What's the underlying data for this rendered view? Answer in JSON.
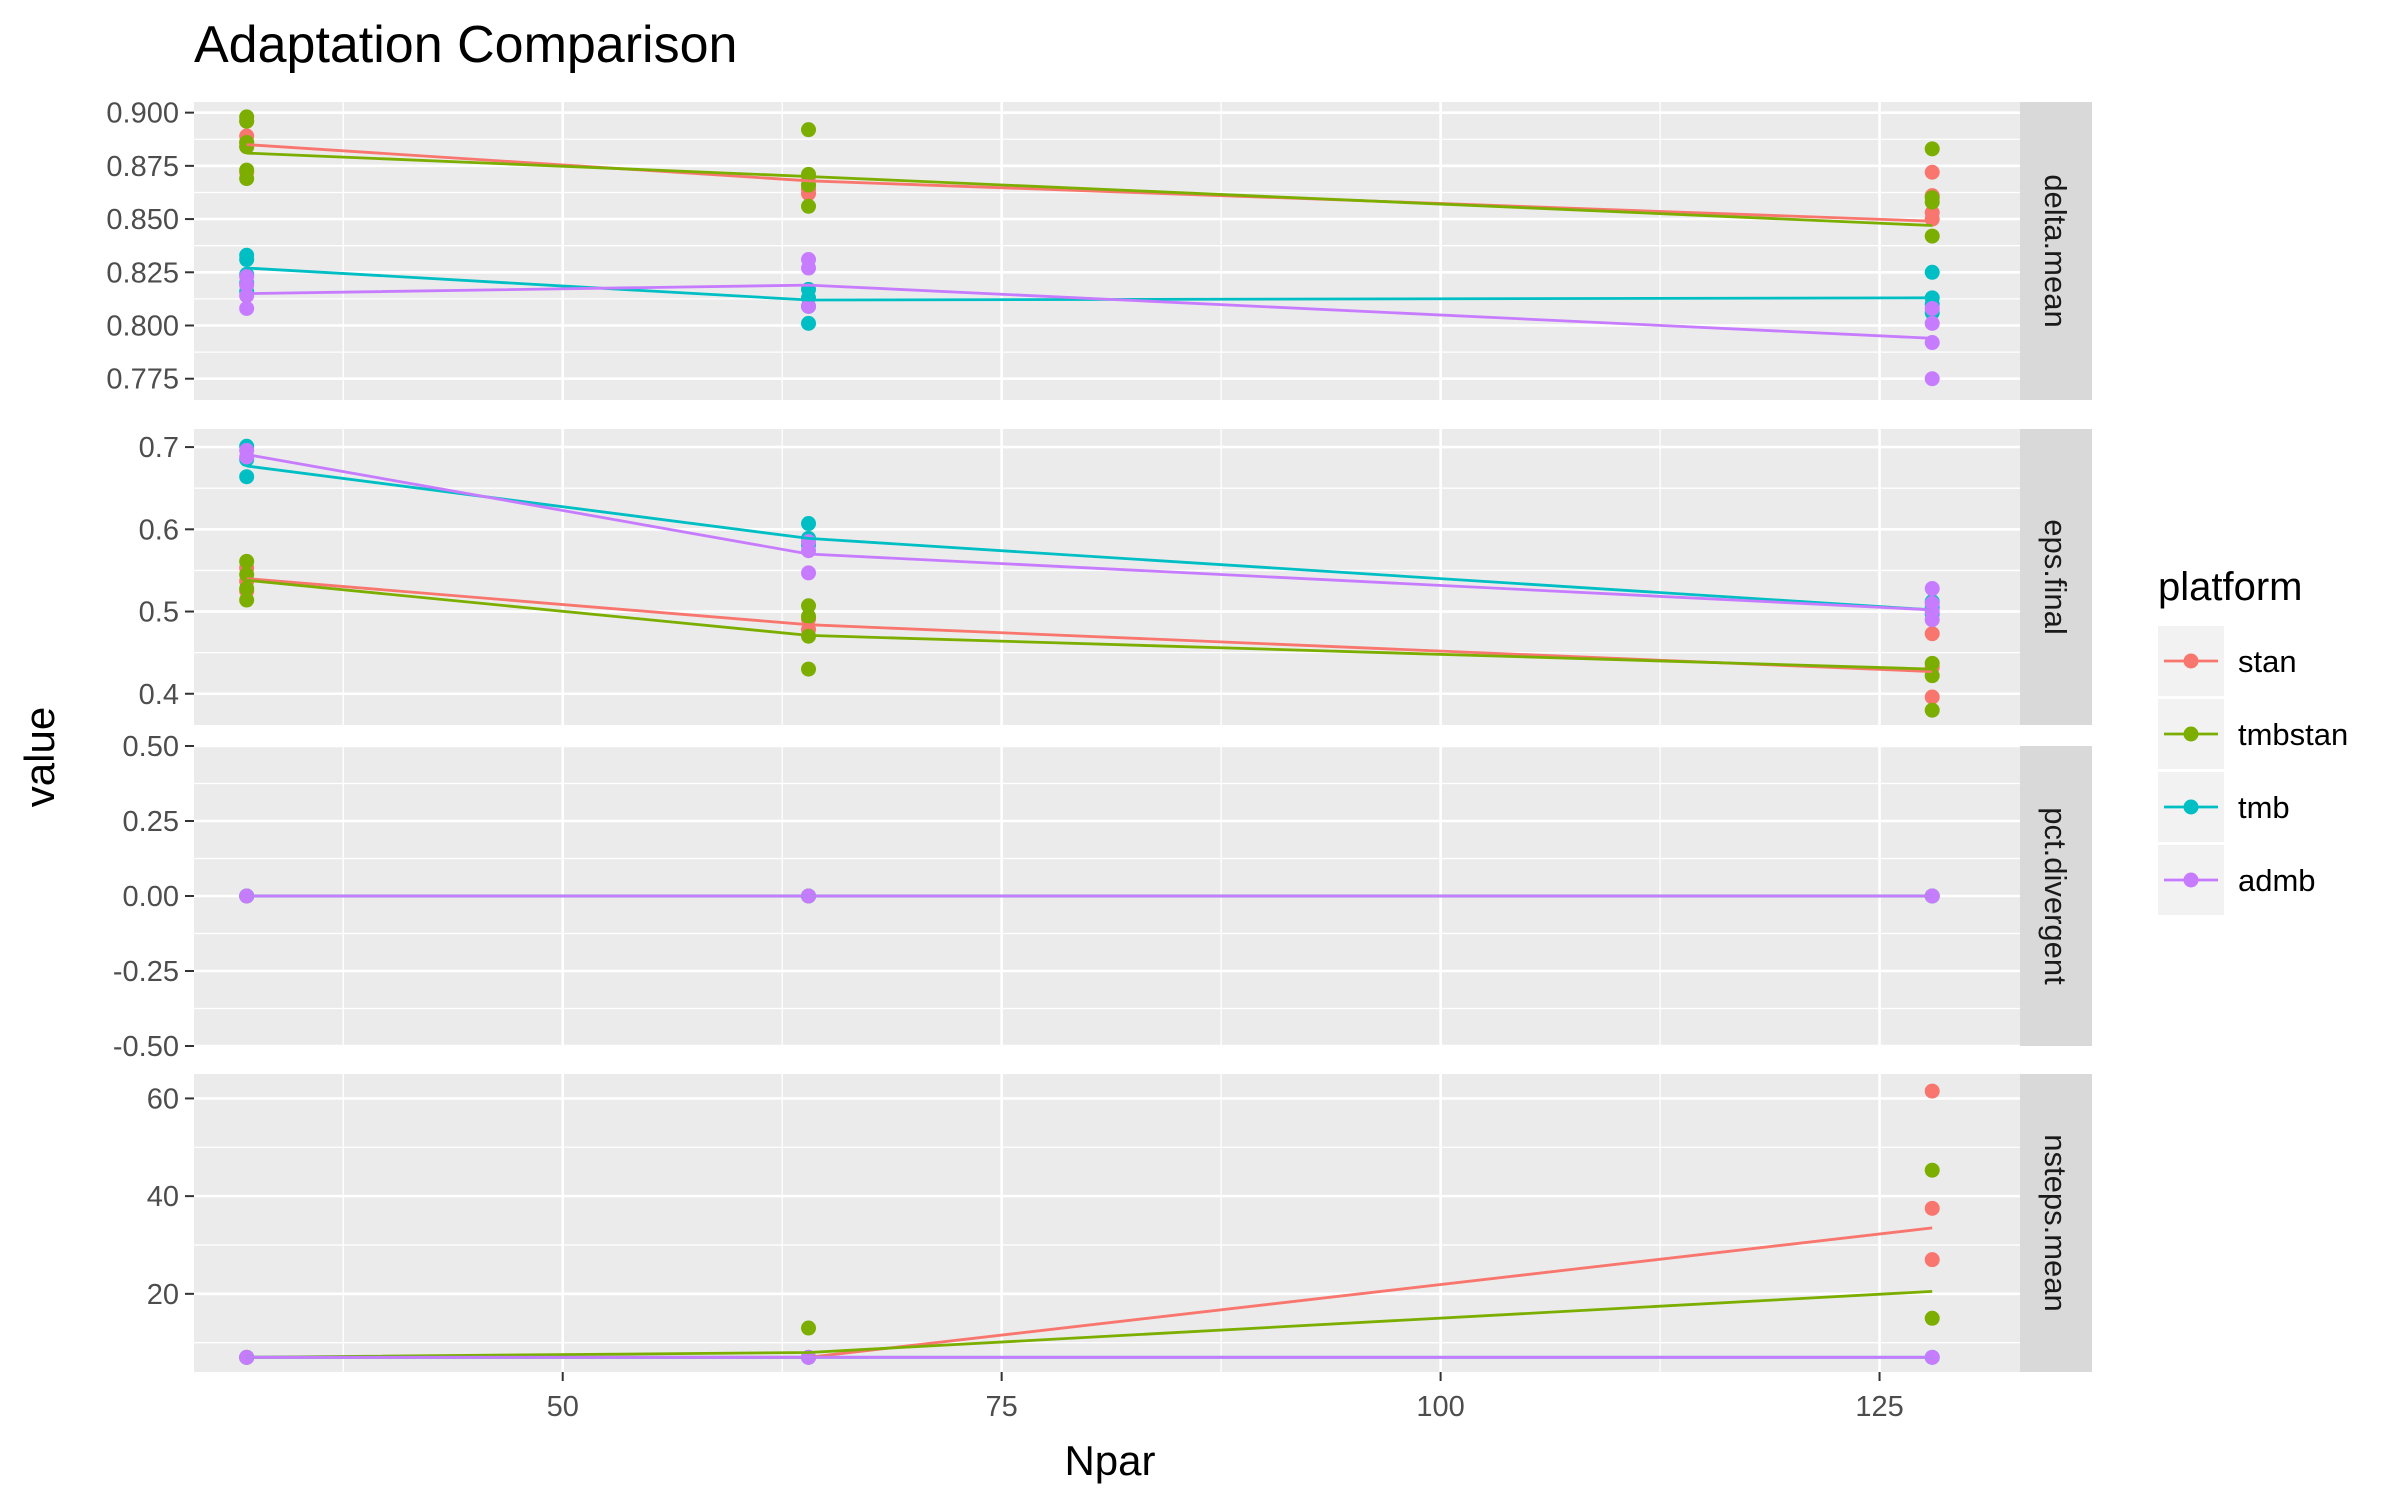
{
  "chart_data": {
    "type": "line",
    "title": "Adaptation Comparison",
    "xlabel": "Npar",
    "ylabel": "value",
    "xlim": [
      29,
      133
    ],
    "x_ticks": [
      50,
      75,
      100,
      125
    ],
    "x_tick_labels": [
      "50",
      "75",
      "100",
      "125"
    ],
    "grid": true,
    "legend": {
      "title": "platform",
      "position": "right",
      "entries": [
        "stan",
        "tmbstan",
        "tmb",
        "admb"
      ]
    },
    "colors": {
      "stan": "#F8766D",
      "tmbstan": "#7CAE00",
      "tmb": "#00BFC4",
      "admb": "#C77CFF"
    },
    "facets": [
      {
        "name": "delta.mean",
        "ylim": [
          0.765,
          0.905
        ],
        "y_ticks": [
          0.775,
          0.8,
          0.825,
          0.85,
          0.875,
          0.9
        ],
        "y_tick_labels": [
          "0.775",
          "0.800",
          "0.825",
          "0.850",
          "0.875",
          "0.900"
        ],
        "series": [
          {
            "name": "stan",
            "line": [
              [
                32,
                0.885
              ],
              [
                64,
                0.868
              ],
              [
                128,
                0.849
              ]
            ],
            "points": [
              [
                32,
                0.896
              ],
              [
                32,
                0.889
              ],
              [
                32,
                0.886
              ],
              [
                32,
                0.884
              ],
              [
                32,
                0.872
              ],
              [
                64,
                0.87
              ],
              [
                64,
                0.866
              ],
              [
                64,
                0.864
              ],
              [
                64,
                0.862
              ],
              [
                128,
                0.872
              ],
              [
                128,
                0.861
              ],
              [
                128,
                0.853
              ],
              [
                128,
                0.85
              ]
            ]
          },
          {
            "name": "tmbstan",
            "line": [
              [
                32,
                0.881
              ],
              [
                64,
                0.87
              ],
              [
                128,
                0.847
              ]
            ],
            "points": [
              [
                32,
                0.898
              ],
              [
                32,
                0.896
              ],
              [
                32,
                0.886
              ],
              [
                32,
                0.884
              ],
              [
                32,
                0.873
              ],
              [
                32,
                0.869
              ],
              [
                64,
                0.892
              ],
              [
                64,
                0.871
              ],
              [
                64,
                0.866
              ],
              [
                64,
                0.856
              ],
              [
                128,
                0.883
              ],
              [
                128,
                0.86
              ],
              [
                128,
                0.858
              ],
              [
                128,
                0.842
              ]
            ]
          },
          {
            "name": "tmb",
            "line": [
              [
                32,
                0.827
              ],
              [
                64,
                0.812
              ],
              [
                128,
                0.813
              ]
            ],
            "points": [
              [
                32,
                0.833
              ],
              [
                32,
                0.831
              ],
              [
                32,
                0.824
              ],
              [
                32,
                0.82
              ],
              [
                32,
                0.816
              ],
              [
                64,
                0.817
              ],
              [
                64,
                0.813
              ],
              [
                64,
                0.809
              ],
              [
                64,
                0.801
              ],
              [
                128,
                0.825
              ],
              [
                128,
                0.813
              ],
              [
                128,
                0.81
              ],
              [
                128,
                0.806
              ]
            ]
          },
          {
            "name": "admb",
            "line": [
              [
                32,
                0.815
              ],
              [
                64,
                0.819
              ],
              [
                128,
                0.794
              ]
            ],
            "points": [
              [
                32,
                0.823
              ],
              [
                32,
                0.819
              ],
              [
                32,
                0.814
              ],
              [
                32,
                0.808
              ],
              [
                64,
                0.831
              ],
              [
                64,
                0.827
              ],
              [
                64,
                0.809
              ],
              [
                128,
                0.808
              ],
              [
                128,
                0.801
              ],
              [
                128,
                0.792
              ],
              [
                128,
                0.775
              ]
            ]
          }
        ]
      },
      {
        "name": "eps.final",
        "ylim": [
          0.362,
          0.722
        ],
        "y_ticks": [
          0.4,
          0.5,
          0.6,
          0.7
        ],
        "y_tick_labels": [
          "0.4",
          "0.5",
          "0.6",
          "0.7"
        ],
        "series": [
          {
            "name": "stan",
            "line": [
              [
                32,
                0.54
              ],
              [
                64,
                0.484
              ],
              [
                128,
                0.427
              ]
            ],
            "points": [
              [
                32,
                0.553
              ],
              [
                32,
                0.537
              ],
              [
                32,
                0.525
              ],
              [
                64,
                0.491
              ],
              [
                64,
                0.478
              ],
              [
                128,
                0.473
              ],
              [
                128,
                0.432
              ],
              [
                128,
                0.396
              ]
            ]
          },
          {
            "name": "tmbstan",
            "line": [
              [
                32,
                0.538
              ],
              [
                64,
                0.471
              ],
              [
                128,
                0.43
              ]
            ],
            "points": [
              [
                32,
                0.561
              ],
              [
                32,
                0.545
              ],
              [
                32,
                0.528
              ],
              [
                32,
                0.514
              ],
              [
                64,
                0.507
              ],
              [
                64,
                0.494
              ],
              [
                64,
                0.47
              ],
              [
                64,
                0.43
              ],
              [
                128,
                0.437
              ],
              [
                128,
                0.422
              ],
              [
                128,
                0.38
              ]
            ]
          },
          {
            "name": "tmb",
            "line": [
              [
                32,
                0.677
              ],
              [
                64,
                0.589
              ],
              [
                128,
                0.502
              ]
            ],
            "points": [
              [
                32,
                0.701
              ],
              [
                32,
                0.685
              ],
              [
                32,
                0.664
              ],
              [
                64,
                0.607
              ],
              [
                64,
                0.589
              ],
              [
                64,
                0.581
              ],
              [
                128,
                0.512
              ],
              [
                128,
                0.505
              ],
              [
                128,
                0.497
              ]
            ]
          },
          {
            "name": "admb",
            "line": [
              [
                32,
                0.691
              ],
              [
                64,
                0.57
              ],
              [
                128,
                0.502
              ]
            ],
            "points": [
              [
                32,
                0.696
              ],
              [
                32,
                0.688
              ],
              [
                64,
                0.585
              ],
              [
                64,
                0.574
              ],
              [
                64,
                0.547
              ],
              [
                128,
                0.528
              ],
              [
                128,
                0.51
              ],
              [
                128,
                0.5
              ],
              [
                128,
                0.49
              ]
            ]
          }
        ]
      },
      {
        "name": "pct.divergent",
        "ylim": [
          -0.5,
          0.5
        ],
        "y_ticks": [
          -0.5,
          -0.25,
          0,
          0.25,
          0.5
        ],
        "y_tick_labels": [
          "-0.50",
          "-0.25",
          "0.00",
          "0.25",
          "0.50"
        ],
        "series": [
          {
            "name": "stan",
            "line": [
              [
                32,
                0
              ],
              [
                64,
                0
              ],
              [
                128,
                0
              ]
            ],
            "points": [
              [
                32,
                0
              ],
              [
                64,
                0
              ],
              [
                128,
                0
              ]
            ]
          },
          {
            "name": "tmbstan",
            "line": [
              [
                32,
                0
              ],
              [
                64,
                0
              ],
              [
                128,
                0
              ]
            ],
            "points": [
              [
                32,
                0
              ],
              [
                64,
                0
              ],
              [
                128,
                0
              ]
            ]
          },
          {
            "name": "tmb",
            "line": [
              [
                32,
                0
              ],
              [
                64,
                0
              ],
              [
                128,
                0
              ]
            ],
            "points": [
              [
                32,
                0
              ],
              [
                64,
                0
              ],
              [
                128,
                0
              ]
            ]
          },
          {
            "name": "admb",
            "line": [
              [
                32,
                0
              ],
              [
                64,
                0
              ],
              [
                128,
                0
              ]
            ],
            "points": [
              [
                32,
                0
              ],
              [
                64,
                0
              ],
              [
                128,
                0
              ]
            ]
          }
        ]
      },
      {
        "name": "nsteps.mean",
        "ylim": [
          4,
          65
        ],
        "y_ticks": [
          20,
          40,
          60
        ],
        "y_tick_labels": [
          "20",
          "40",
          "60"
        ],
        "series": [
          {
            "name": "stan",
            "line": [
              [
                32,
                7
              ],
              [
                64,
                7
              ],
              [
                128,
                33.5
              ]
            ],
            "points": [
              [
                32,
                7
              ],
              [
                64,
                7
              ],
              [
                128,
                61.5
              ],
              [
                128,
                37.5
              ],
              [
                128,
                27
              ]
            ]
          },
          {
            "name": "tmbstan",
            "line": [
              [
                32,
                7
              ],
              [
                64,
                8
              ],
              [
                128,
                20.5
              ]
            ],
            "points": [
              [
                32,
                7
              ],
              [
                64,
                13
              ],
              [
                128,
                45.3
              ],
              [
                128,
                15
              ]
            ]
          },
          {
            "name": "tmb",
            "line": [
              [
                32,
                7
              ],
              [
                64,
                7
              ],
              [
                128,
                7
              ]
            ],
            "points": [
              [
                32,
                7
              ],
              [
                64,
                7
              ],
              [
                128,
                7
              ]
            ]
          },
          {
            "name": "admb",
            "line": [
              [
                32,
                7
              ],
              [
                64,
                7
              ],
              [
                128,
                7
              ]
            ],
            "points": [
              [
                32,
                7
              ],
              [
                64,
                7
              ],
              [
                128,
                7
              ]
            ]
          }
        ]
      }
    ]
  }
}
